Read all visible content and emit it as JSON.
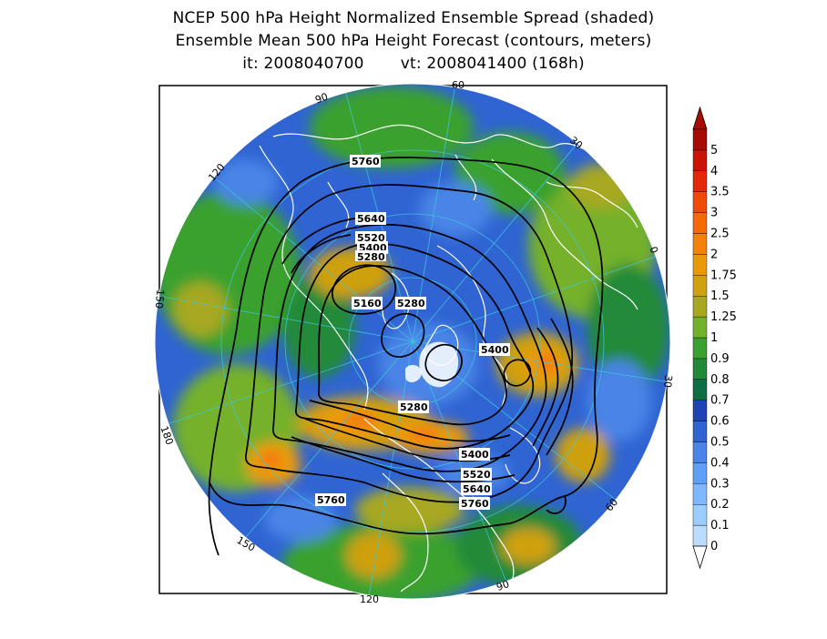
{
  "title": {
    "line1": "NCEP 500 hPa Height Normalized Ensemble Spread (shaded)",
    "line2": "Ensemble Mean 500 hPa Height Forecast (contours, meters)",
    "init_time": "it: 2008040700",
    "valid_time": "vt: 2008041400 (168h)"
  },
  "colorbar": {
    "labels": [
      "0",
      "0.1",
      "0.2",
      "0.3",
      "0.4",
      "0.5",
      "0.6",
      "0.7",
      "0.8",
      "0.9",
      "1",
      "1.25",
      "1.5",
      "1.75",
      "2",
      "2.5",
      "3",
      "3.5",
      "4",
      "5"
    ],
    "colors": [
      "#b9dcff",
      "#9ccdff",
      "#7fb8ff",
      "#5f9ff5",
      "#4a84e6",
      "#2f64d2",
      "#1e44b4",
      "#0e6f44",
      "#218a38",
      "#3aa12f",
      "#74b12a",
      "#a8a820",
      "#cfa010",
      "#ea9a08",
      "#f3820a",
      "#f46a0a",
      "#f04a08",
      "#e22808",
      "#cc1406",
      "#a80a04"
    ],
    "under_color": "#ffffff",
    "over_color": "#a80a04"
  },
  "contour_labels": [
    "5760",
    "5640",
    "5520",
    "5400",
    "5280",
    "5160",
    "5280",
    "5400",
    "5280",
    "5400",
    "5520",
    "5640",
    "5760",
    "5760"
  ],
  "longitude_labels": [
    "90",
    "60",
    "30",
    "0",
    "30",
    "60",
    "90",
    "120",
    "150",
    "180",
    "150",
    "120"
  ]
}
